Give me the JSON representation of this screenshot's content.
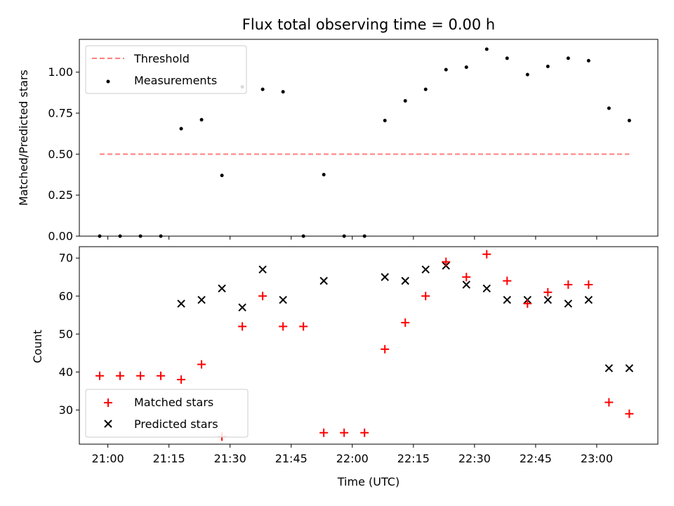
{
  "figure": {
    "title": "Flux total observing time = 0.00 h",
    "xlabel": "Time (UTC)",
    "x_ticks": [
      "21:00",
      "21:15",
      "21:30",
      "21:45",
      "22:00",
      "22:15",
      "22:30",
      "22:45",
      "23:00"
    ],
    "x_range": [
      "20:53",
      "23:15"
    ]
  },
  "chart_data": [
    {
      "type": "scatter",
      "ylabel": "Matched/Predicted stars",
      "ylim": [
        0,
        1.2
      ],
      "y_ticks": [
        "0.00",
        "0.25",
        "0.50",
        "0.75",
        "1.00"
      ],
      "legend_location": "upper-left",
      "threshold": {
        "name": "Threshold",
        "value": 0.5,
        "x_start": "20:58",
        "x_end": "23:08",
        "color": "#ff7f7f",
        "style": "dashed"
      },
      "series": [
        {
          "name": "Measurements",
          "color": "#000000",
          "marker": "dot",
          "x": [
            "20:58",
            "21:03",
            "21:08",
            "21:13",
            "21:18",
            "21:23",
            "21:28",
            "21:33",
            "21:38",
            "21:43",
            "21:48",
            "21:53",
            "21:58",
            "22:03",
            "22:08",
            "22:13",
            "22:18",
            "22:23",
            "22:28",
            "22:33",
            "22:38",
            "22:43",
            "22:48",
            "22:53",
            "22:58",
            "23:03",
            "23:08"
          ],
          "y": [
            0.0,
            0.0,
            0.0,
            0.0,
            0.655,
            0.71,
            0.37,
            0.91,
            0.895,
            0.88,
            0.0,
            0.375,
            0.0,
            0.0,
            0.705,
            0.825,
            0.895,
            1.015,
            1.03,
            1.14,
            1.085,
            0.985,
            1.035,
            1.085,
            1.07,
            0.78,
            0.705
          ]
        }
      ]
    },
    {
      "type": "scatter",
      "ylabel": "Count",
      "ylim": [
        21,
        73
      ],
      "y_ticks": [
        "30",
        "40",
        "50",
        "60",
        "70"
      ],
      "legend_location": "lower-left",
      "series": [
        {
          "name": "Matched stars",
          "color": "#ff0000",
          "marker": "plus",
          "x": [
            "20:58",
            "21:03",
            "21:08",
            "21:13",
            "21:18",
            "21:23",
            "21:28",
            "21:33",
            "21:38",
            "21:43",
            "21:48",
            "21:53",
            "21:58",
            "22:03",
            "22:08",
            "22:13",
            "22:18",
            "22:23",
            "22:28",
            "22:33",
            "22:38",
            "22:43",
            "22:48",
            "22:53",
            "22:58",
            "23:03",
            "23:08"
          ],
          "y": [
            39,
            39,
            39,
            39,
            38,
            42,
            23,
            52,
            60,
            52,
            52,
            24,
            24,
            24,
            46,
            53,
            60,
            69,
            65,
            71,
            64,
            58,
            61,
            63,
            63,
            32,
            29
          ]
        },
        {
          "name": "Predicted stars",
          "color": "#000000",
          "marker": "x",
          "x": [
            "21:18",
            "21:23",
            "21:28",
            "21:33",
            "21:38",
            "21:43",
            "21:53",
            "22:08",
            "22:13",
            "22:18",
            "22:23",
            "22:28",
            "22:33",
            "22:38",
            "22:43",
            "22:48",
            "22:53",
            "22:58",
            "23:03",
            "23:08"
          ],
          "y": [
            58,
            59,
            62,
            57,
            67,
            59,
            64,
            65,
            64,
            67,
            68,
            63,
            62,
            59,
            59,
            59,
            58,
            59,
            41,
            41
          ]
        }
      ]
    }
  ]
}
